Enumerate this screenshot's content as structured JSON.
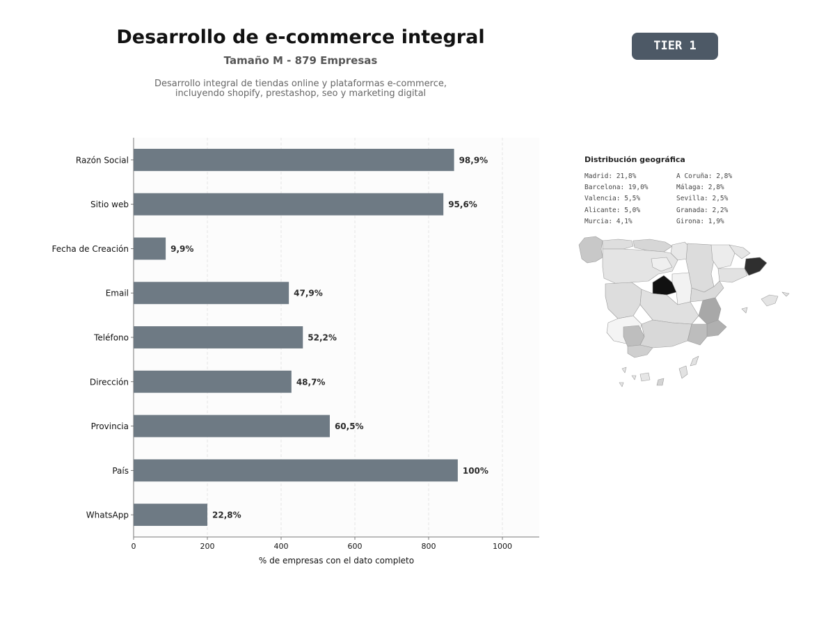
{
  "header": {
    "title": "Desarrollo de e-commerce integral",
    "subtitle": "Tamaño M - 879 Empresas",
    "description_line1": "Desarrollo integral de tiendas online y plataformas e-commerce,",
    "description_line2": "incluyendo shopify, prestashop, seo y marketing digital",
    "tier_badge": "TIER 1"
  },
  "chart_data": {
    "type": "bar",
    "orientation": "horizontal",
    "categories": [
      "Razón Social",
      "Sitio web",
      "Fecha de Creación",
      "Email",
      "Teléfono",
      "Dirección",
      "Provincia",
      "País",
      "WhatsApp"
    ],
    "values": [
      869,
      840,
      87,
      421,
      459,
      428,
      532,
      879,
      200
    ],
    "data_labels": [
      "98,9%",
      "95,6%",
      "9,9%",
      "47,9%",
      "52,2%",
      "48,7%",
      "60,5%",
      "100%",
      "22,8%"
    ],
    "xlabel": "% de empresas con el dato completo",
    "ylabel": "",
    "xlim": [
      0,
      1100
    ],
    "xticks": [
      0,
      200,
      400,
      600,
      800,
      1000
    ],
    "grid": "vertical dashed",
    "bar_color": "#6e7a84"
  },
  "geo": {
    "title": "Distribución geográfica",
    "left_column": [
      "Madrid: 21,8%",
      "Barcelona: 19,0%",
      "Valencia: 5,5%",
      "Alicante: 5,0%",
      "Murcia: 4,1%"
    ],
    "right_column": [
      "A Coruña: 2,8%",
      "Málaga: 2,8%",
      "Sevilla: 2,5%",
      "Granada: 2,2%",
      "Girona: 1,9%"
    ]
  }
}
